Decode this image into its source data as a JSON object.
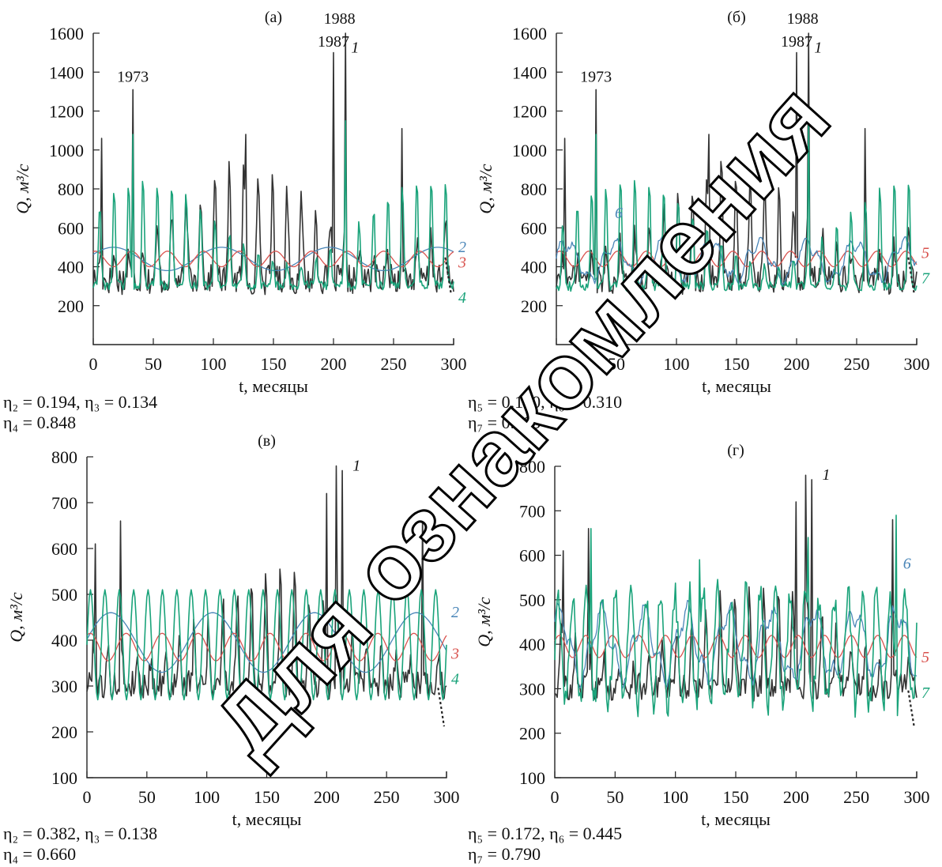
{
  "figure": {
    "colors": {
      "s1": "#333333",
      "s2": "#4a86b8",
      "s3": "#d9534f",
      "s4": "#1aa37a",
      "s5": "#d9534f",
      "s6": "#4a86b8",
      "s7": "#1aa37a"
    }
  },
  "chart_data": [
    {
      "panel_label": "(а)",
      "type": "line",
      "xlabel": "t, месяцы",
      "ylabel": "Q, м³/с",
      "xlim": [
        0,
        300
      ],
      "ylim": [
        0,
        1600
      ],
      "xticks": [
        0,
        50,
        100,
        150,
        200,
        250,
        300
      ],
      "yticks": [
        200,
        400,
        600,
        800,
        1000,
        1200,
        1400,
        1600
      ],
      "annotations": [
        {
          "text": "1973",
          "x": 33,
          "y": 1350
        },
        {
          "text": "1987",
          "x": 200,
          "y": 1530
        },
        {
          "text": "1988",
          "x": 205,
          "y": 1650
        },
        {
          "text": "1",
          "x": 218,
          "y": 1500
        }
      ],
      "series": [
        {
          "name": "1",
          "kind": "obs",
          "color_key": "s1",
          "mean": 520,
          "amp": 340,
          "peaks": [
            [
              33,
              1310
            ],
            [
              200,
              1500
            ],
            [
              210,
              1600
            ],
            [
              127,
              1080
            ],
            [
              257,
              1110
            ],
            [
              7,
              1060
            ]
          ]
        },
        {
          "name": "2",
          "kind": "slow",
          "color_key": "s2",
          "mean": 440,
          "amp": 60,
          "period": 90,
          "phase": 0.4
        },
        {
          "name": "3",
          "kind": "slow",
          "color_key": "s3",
          "mean": 440,
          "amp": 40,
          "period": 30,
          "phase": 1.2
        },
        {
          "name": "4",
          "kind": "seasonal",
          "color_key": "s4",
          "mean": 480,
          "amp": 320,
          "peaks": [
            [
              33,
              1080
            ],
            [
              210,
              1150
            ]
          ]
        }
      ],
      "series_labels": [
        {
          "text": "2",
          "y": 500
        },
        {
          "text": "3",
          "y": 420
        },
        {
          "text": "4",
          "y": 240
        }
      ],
      "eta": [
        "η₂ = 0.194, η₃ = 0.134",
        "η₄ = 0.848"
      ]
    },
    {
      "panel_label": "(б)",
      "type": "line",
      "xlabel": "t, месяцы",
      "ylabel": "Q, м³/с",
      "xlim": [
        0,
        300
      ],
      "ylim": [
        0,
        1600
      ],
      "xticks": [
        0,
        50,
        100,
        150,
        200,
        250,
        300
      ],
      "yticks": [
        200,
        400,
        600,
        800,
        1000,
        1200,
        1400,
        1600
      ],
      "annotations": [
        {
          "text": "1973",
          "x": 33,
          "y": 1350
        },
        {
          "text": "1987",
          "x": 200,
          "y": 1530
        },
        {
          "text": "1988",
          "x": 205,
          "y": 1650
        },
        {
          "text": "1",
          "x": 218,
          "y": 1500
        },
        {
          "text": "6",
          "x": 52,
          "y": 650
        }
      ],
      "series": [
        {
          "name": "1",
          "kind": "obs",
          "color_key": "s1",
          "mean": 520,
          "amp": 340,
          "peaks": [
            [
              33,
              1310
            ],
            [
              200,
              1500
            ],
            [
              210,
              1600
            ],
            [
              127,
              1080
            ],
            [
              257,
              1110
            ],
            [
              7,
              1060
            ]
          ]
        },
        {
          "name": "5",
          "kind": "slow",
          "color_key": "s5",
          "mean": 440,
          "amp": 40,
          "period": 24,
          "phase": 0.8
        },
        {
          "name": "6",
          "kind": "mixed",
          "color_key": "s6",
          "mean": 430,
          "amp": 90,
          "period": 40,
          "phase": 0.2
        },
        {
          "name": "7",
          "kind": "seasonal",
          "color_key": "s7",
          "mean": 480,
          "amp": 330,
          "peaks": [
            [
              33,
              1080
            ],
            [
              210,
              1150
            ]
          ]
        }
      ],
      "series_labels": [
        {
          "text": "5",
          "y": 470
        },
        {
          "text": "7",
          "y": 340
        }
      ],
      "eta": [
        "η₅ = 0.150, η₆ = 0.310",
        "η₇ = 0.903"
      ]
    },
    {
      "panel_label": "(в)",
      "type": "line",
      "xlabel": "t, месяцы",
      "ylabel": "Q, м³/с",
      "xlim": [
        0,
        300
      ],
      "ylim": [
        100,
        800
      ],
      "xticks": [
        0,
        50,
        100,
        150,
        200,
        250,
        300
      ],
      "yticks": [
        100,
        200,
        300,
        400,
        500,
        600,
        700,
        800
      ],
      "annotations": [
        {
          "text": "1",
          "x": 225,
          "y": 770
        }
      ],
      "series": [
        {
          "name": "1",
          "kind": "obs",
          "color_key": "s1",
          "mean": 380,
          "amp": 140,
          "peaks": [
            [
              208,
              780
            ],
            [
              213,
              770
            ],
            [
              200,
              720
            ],
            [
              280,
              680
            ],
            [
              28,
              660
            ],
            [
              7,
              610
            ]
          ]
        },
        {
          "name": "2",
          "kind": "slow",
          "color_key": "s2",
          "mean": 395,
          "amp": 65,
          "period": 85,
          "phase": 0.1
        },
        {
          "name": "3",
          "kind": "slow",
          "color_key": "s3",
          "mean": 385,
          "amp": 30,
          "period": 30,
          "phase": 1.0
        },
        {
          "name": "4",
          "kind": "regular",
          "color_key": "s4",
          "mean": 390,
          "amp": 120,
          "period": 12,
          "phase": 0.0
        }
      ],
      "series_labels": [
        {
          "text": "2",
          "y": 460
        },
        {
          "text": "3",
          "y": 370
        },
        {
          "text": "4",
          "y": 315
        }
      ],
      "eta": [
        "η₂ = 0.382, η₃ = 0.138",
        "η₄ = 0.660"
      ]
    },
    {
      "panel_label": "(г)",
      "type": "line",
      "xlabel": "t, месяцы",
      "ylabel": "Q, м³/с",
      "xlim": [
        0,
        300
      ],
      "ylim": [
        100,
        800
      ],
      "xticks": [
        0,
        50,
        100,
        150,
        200,
        250,
        300
      ],
      "yticks": [
        100,
        200,
        300,
        400,
        500,
        600,
        700,
        800
      ],
      "annotations": [
        {
          "text": "1",
          "x": 225,
          "y": 770
        },
        {
          "text": "6",
          "x": 292,
          "y": 570
        }
      ],
      "series": [
        {
          "name": "1",
          "kind": "obs",
          "color_key": "s1",
          "mean": 380,
          "amp": 140,
          "peaks": [
            [
              208,
              780
            ],
            [
              213,
              770
            ],
            [
              200,
              720
            ],
            [
              280,
              680
            ],
            [
              28,
              660
            ],
            [
              7,
              610
            ]
          ]
        },
        {
          "name": "5",
          "kind": "slow",
          "color_key": "s5",
          "mean": 395,
          "amp": 25,
          "period": 22,
          "phase": 0.5
        },
        {
          "name": "6",
          "kind": "mixed",
          "color_key": "s6",
          "mean": 400,
          "amp": 70,
          "period": 35,
          "phase": 0.9
        },
        {
          "name": "7",
          "kind": "irregular",
          "color_key": "s7",
          "mean": 390,
          "amp": 150,
          "peaks": [
            [
              210,
              640
            ],
            [
              283,
              690
            ],
            [
              30,
              660
            ],
            [
              120,
              590
            ]
          ]
        }
      ],
      "series_labels": [
        {
          "text": "5",
          "y": 370
        },
        {
          "text": "7",
          "y": 290
        }
      ],
      "eta": [
        "η₅ = 0.172, η₆ = 0.445",
        "η₇ = 0.790"
      ]
    }
  ],
  "watermark": {
    "text": "Для ознакомления"
  }
}
